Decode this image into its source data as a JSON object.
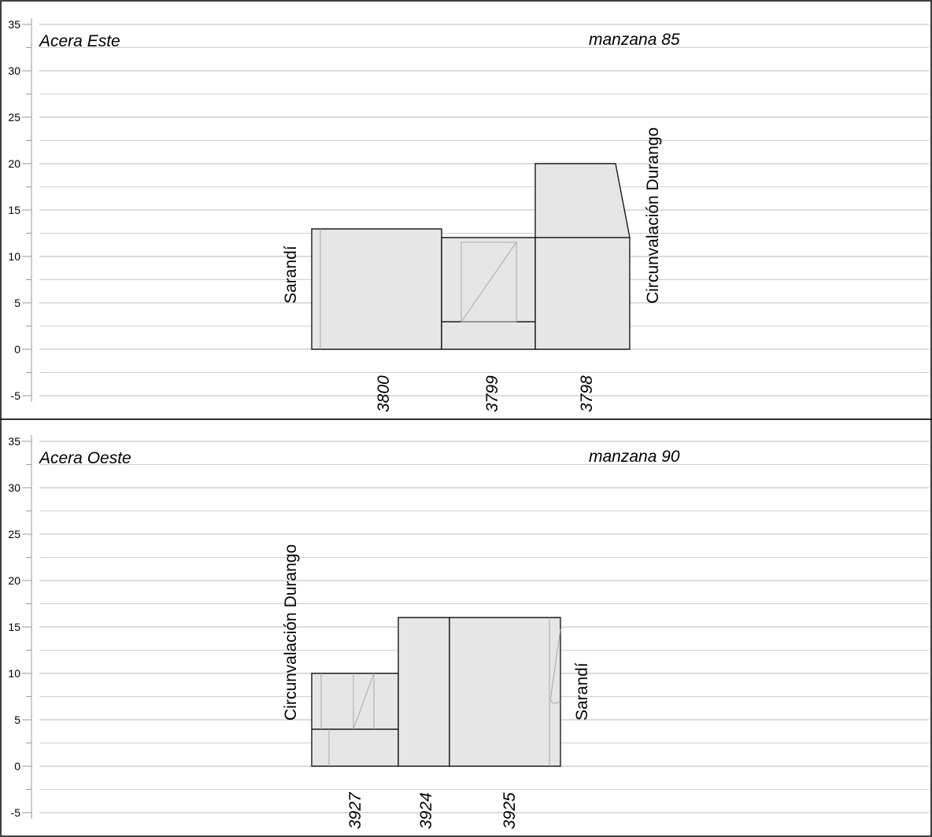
{
  "y_ticks": [
    35,
    30,
    25,
    20,
    15,
    10,
    5,
    0,
    -5
  ],
  "panels": [
    {
      "sidewalk": "Acera Este",
      "block": "manzana 85",
      "street_left": "Sarandí",
      "street_right": "Circunvalación Durango",
      "lots": [
        {
          "number": "3800"
        },
        {
          "number": "3799"
        },
        {
          "number": "3798"
        }
      ]
    },
    {
      "sidewalk": "Acera Oeste",
      "block": "manzana 90",
      "street_left": "Circunvalación Durango",
      "street_right": "Sarandí",
      "lots": [
        {
          "number": "3927"
        },
        {
          "number": "3924"
        },
        {
          "number": "3925"
        }
      ]
    }
  ]
}
